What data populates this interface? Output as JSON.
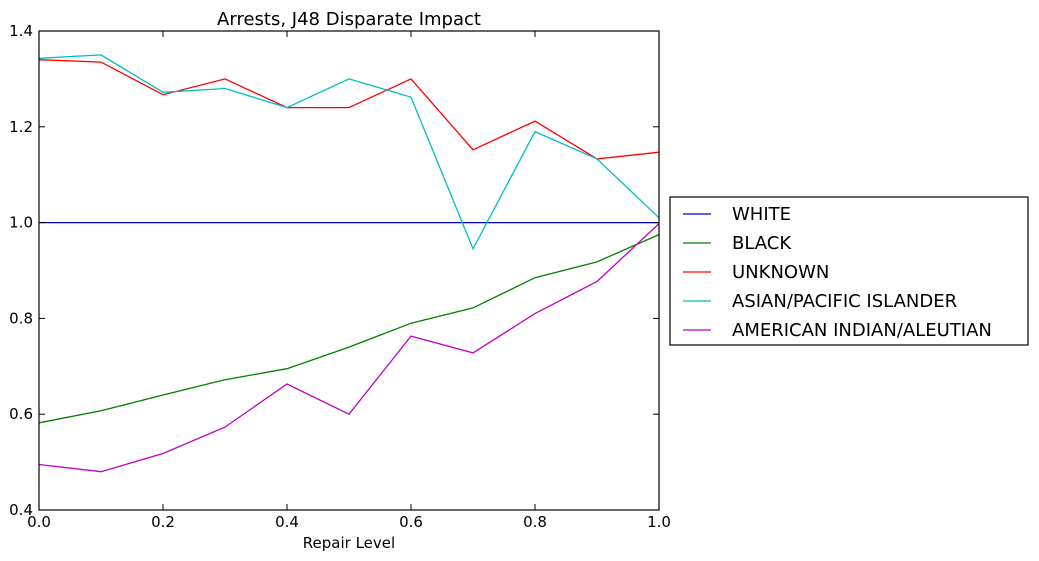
{
  "chart_data": {
    "type": "line",
    "title": "Arrests, J48 Disparate Impact",
    "xlabel": "Repair Level",
    "ylabel": "",
    "xlim": [
      0.0,
      1.0
    ],
    "ylim": [
      0.4,
      1.4
    ],
    "xticks": [
      "0.0",
      "0.2",
      "0.4",
      "0.6",
      "0.8",
      "1.0"
    ],
    "yticks": [
      "0.4",
      "0.6",
      "0.8",
      "1.0",
      "1.2",
      "1.4"
    ],
    "grid": false,
    "legend_position": "right",
    "x": [
      0.0,
      0.1,
      0.2,
      0.3,
      0.4,
      0.5,
      0.6,
      0.7,
      0.8,
      0.9,
      1.0
    ],
    "series": [
      {
        "name": "WHITE",
        "color": "#0000bf",
        "values": [
          1.0,
          1.0,
          1.0,
          1.0,
          1.0,
          1.0,
          1.0,
          1.0,
          1.0,
          1.0,
          1.0
        ]
      },
      {
        "name": "BLACK",
        "color": "#008000",
        "values": [
          0.582,
          0.607,
          0.64,
          0.672,
          0.695,
          0.74,
          0.79,
          0.822,
          0.885,
          0.918,
          0.975
        ]
      },
      {
        "name": "UNKNOWN",
        "color": "#ff0000",
        "values": [
          1.34,
          1.335,
          1.267,
          1.3,
          1.24,
          1.24,
          1.3,
          1.152,
          1.212,
          1.133,
          1.147
        ]
      },
      {
        "name": "ASIAN/PACIFIC ISLANDER",
        "color": "#00bfbf",
        "values": [
          1.343,
          1.35,
          1.272,
          1.28,
          1.24,
          1.3,
          1.262,
          0.945,
          1.19,
          1.133,
          1.01
        ]
      },
      {
        "name": "AMERICAN INDIAN/ALEUTIAN",
        "color": "#bf00bf",
        "values": [
          0.495,
          0.48,
          0.518,
          0.573,
          0.663,
          0.6,
          0.763,
          0.728,
          0.81,
          0.877,
          0.998
        ]
      }
    ]
  }
}
